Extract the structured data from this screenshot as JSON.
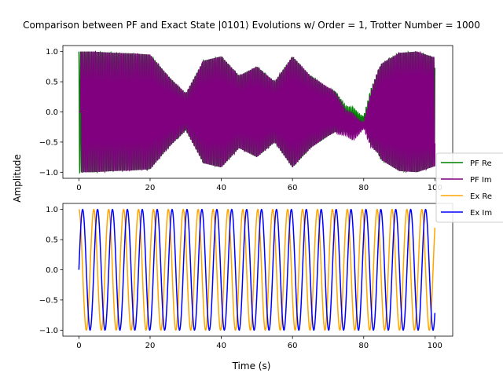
{
  "figure": {
    "title": "Comparison between PF and Exact State |0101⟩ Evolutions w/ Order = 1, Trotter Number = 1000",
    "ylabel": "Amplitude",
    "xlabel": "Time (s)"
  },
  "chart_data": [
    {
      "type": "line",
      "xlim": [
        -4.5,
        105
      ],
      "ylim": [
        -1.1,
        1.1
      ],
      "xticks": [
        0,
        20,
        40,
        60,
        80,
        100
      ],
      "yticks": [
        -1.0,
        -0.5,
        0.0,
        0.5,
        1.0
      ],
      "xtick_labels": [
        "0",
        "20",
        "40",
        "60",
        "80",
        "100"
      ],
      "ytick_labels": [
        "−1.0",
        "−0.5",
        "0.0",
        "0.5",
        "1.0"
      ],
      "grid": false,
      "series": [
        {
          "name": "PF Re",
          "color": "#008000",
          "description_points": {
            "x": [
              0,
              4,
              10,
              15,
              20,
              25,
              30,
              35,
              40,
              45,
              50,
              55,
              60,
              65,
              70,
              73,
              75,
              77,
              79,
              80,
              82,
              85,
              90,
              95,
              100
            ],
            "envelope": [
              1.0,
              1.0,
              0.98,
              0.97,
              0.95,
              0.6,
              0.3,
              0.85,
              0.92,
              0.6,
              0.75,
              0.5,
              0.92,
              0.6,
              0.4,
              0.3,
              0.2,
              0.22,
              0.1,
              0.05,
              0.45,
              0.8,
              0.98,
              1.0,
              0.9
            ]
          }
        },
        {
          "name": "PF Im",
          "color": "#800080",
          "description_points": {
            "x": [
              0,
              4,
              10,
              15,
              20,
              25,
              30,
              35,
              40,
              45,
              50,
              55,
              60,
              65,
              70,
              73,
              75,
              77,
              79,
              80,
              82,
              85,
              90,
              95,
              100
            ],
            "envelope": [
              1.0,
              1.0,
              0.98,
              0.97,
              0.95,
              0.6,
              0.3,
              0.85,
              0.92,
              0.6,
              0.75,
              0.5,
              0.92,
              0.6,
              0.4,
              0.3,
              0.2,
              0.22,
              0.1,
              0.05,
              0.45,
              0.8,
              0.98,
              1.0,
              0.9
            ]
          }
        }
      ]
    },
    {
      "type": "line",
      "xlim": [
        -4.5,
        105
      ],
      "ylim": [
        -1.1,
        1.1
      ],
      "xticks": [
        0,
        20,
        40,
        60,
        80,
        100
      ],
      "yticks": [
        -1.0,
        -0.5,
        0.0,
        0.5,
        1.0
      ],
      "xtick_labels": [
        "0",
        "20",
        "40",
        "60",
        "80",
        "100"
      ],
      "ytick_labels": [
        "−1.0",
        "−0.5",
        "0.0",
        "0.5",
        "1.0"
      ],
      "grid": false,
      "series": [
        {
          "name": "Ex Re",
          "color": "#FFA500",
          "function": "cos",
          "angular_frequency": 1.5,
          "amplitude": 1.0
        },
        {
          "name": "Ex Im",
          "color": "#0000FF",
          "function": "sin",
          "angular_frequency": 1.5,
          "amplitude": 1.0
        }
      ]
    }
  ],
  "legend": {
    "placement": "center-right",
    "entries": [
      {
        "label": "PF Re",
        "color": "#008000"
      },
      {
        "label": "PF Im",
        "color": "#800080"
      },
      {
        "label": "Ex Re",
        "color": "#FFA500"
      },
      {
        "label": "Ex Im",
        "color": "#0000FF"
      }
    ]
  }
}
